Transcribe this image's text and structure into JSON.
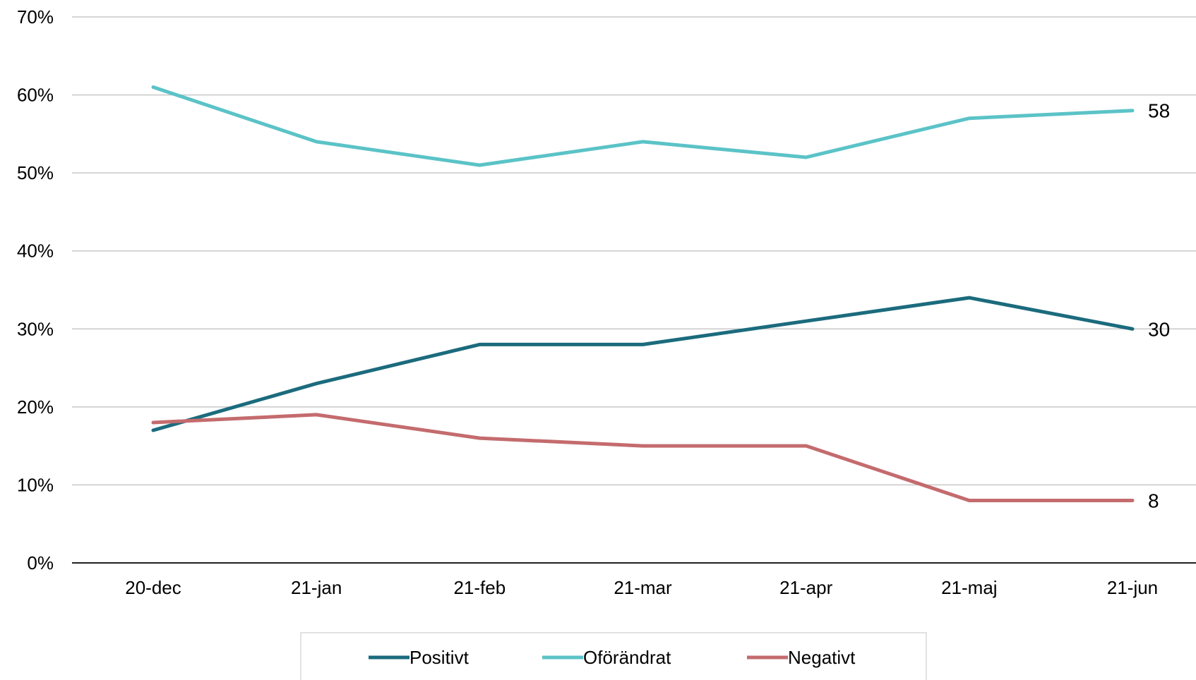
{
  "chart_data": {
    "type": "line",
    "categories": [
      "20-dec",
      "21-jan",
      "21-feb",
      "21-mar",
      "21-apr",
      "21-maj",
      "21-jun"
    ],
    "series": [
      {
        "name": "Positivt",
        "color": "#1b6b7d",
        "values": [
          17,
          23,
          28,
          28,
          31,
          34,
          30
        ]
      },
      {
        "name": "Oförändrat",
        "color": "#5bc3c7",
        "values": [
          61,
          54,
          51,
          54,
          52,
          57,
          58
        ]
      },
      {
        "name": "Negativt",
        "color": "#c46b6e",
        "values": [
          18,
          19,
          16,
          15,
          15,
          8,
          8
        ]
      }
    ],
    "end_labels": [
      "30",
      "58",
      "8"
    ],
    "ylim": [
      0,
      70
    ],
    "yticks": [
      0,
      10,
      20,
      30,
      40,
      50,
      60,
      70
    ],
    "ytick_labels": [
      "0%",
      "10%",
      "20%",
      "30%",
      "40%",
      "50%",
      "60%",
      "70%"
    ],
    "grid": true,
    "legend_position": "bottom",
    "gridline_color": "#c8c8c8",
    "axis_color": "#000000"
  }
}
